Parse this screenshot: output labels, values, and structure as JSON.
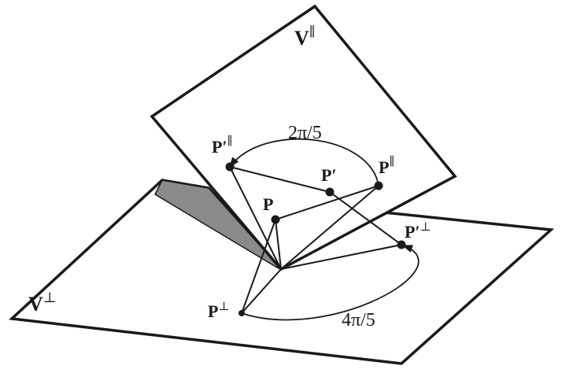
{
  "diagram": {
    "planes": {
      "parallel": {
        "base": "V",
        "mark": "∥"
      },
      "perp": {
        "base": "V",
        "mark": "⊥"
      }
    },
    "points": {
      "P": {
        "base": "P",
        "mark": ""
      },
      "P_prime": {
        "base": "P′",
        "mark": ""
      },
      "P_par": {
        "base": "P",
        "mark": "∥"
      },
      "P_prime_par": {
        "base": "P′",
        "mark": "∥"
      },
      "P_perp": {
        "base": "P",
        "mark": "⊥"
      },
      "P_prime_perp": {
        "base": "P′",
        "mark": "⊥"
      }
    },
    "angles": {
      "upper": "2π/5",
      "lower": "4π/5"
    }
  }
}
